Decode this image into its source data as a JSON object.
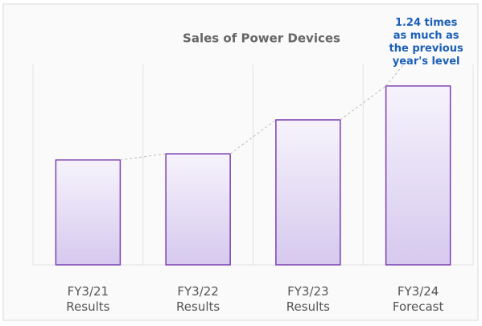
{
  "chart_data": {
    "type": "bar",
    "title": "Sales of Power Devices",
    "categories": [
      [
        "FY3/21",
        "Results"
      ],
      [
        "FY3/22",
        "Results"
      ],
      [
        "FY3/23",
        "Results"
      ],
      [
        "FY3/24",
        "Forecast"
      ]
    ],
    "values": [
      136,
      144,
      188,
      232
    ],
    "ylim": [
      0,
      260
    ],
    "color": "#7b3fb3",
    "annotation": [
      "1.24 times",
      "as much as",
      "the previous",
      "year's level"
    ],
    "annotation_color": "#1b5fb8"
  }
}
